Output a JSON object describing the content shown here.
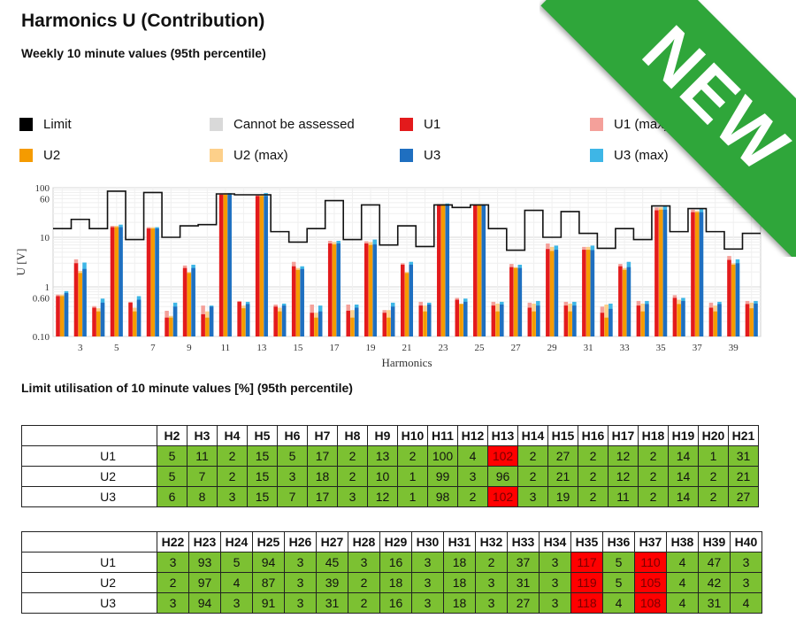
{
  "header": {
    "title": "Harmonics U (Contribution)",
    "subtitle": "Weekly 10 minute values (95th percentile)"
  },
  "ribbon": {
    "label": "NEW",
    "color": "#2fa63a"
  },
  "legend": [
    {
      "label": "Limit",
      "color": "#000000"
    },
    {
      "label": "Cannot be assessed",
      "color": "#d9d9d9"
    },
    {
      "label": "U1",
      "color": "#e31a1c"
    },
    {
      "label": "U1 (max)",
      "color": "#f4a09a"
    },
    {
      "label": "U2",
      "color": "#f59b00"
    },
    {
      "label": "U2 (max)",
      "color": "#fdd08a"
    },
    {
      "label": "U3",
      "color": "#1f6fc0"
    },
    {
      "label": "U3 (max)",
      "color": "#3eb6e6"
    }
  ],
  "chart_data": {
    "type": "bar",
    "yscale": "log",
    "ylim": [
      0.1,
      100
    ],
    "yticks": [
      0.1,
      0.6,
      1,
      10,
      60,
      100
    ],
    "ytick_labels": [
      "0.10",
      "0.60",
      "1",
      "10",
      "60",
      "100"
    ],
    "xlabel": "Harmonics",
    "ylabel": "U [V]",
    "x_tick_labels": [
      "3",
      "5",
      "7",
      "9",
      "11",
      "13",
      "15",
      "17",
      "19",
      "21",
      "23",
      "25",
      "27",
      "29",
      "31",
      "33",
      "35",
      "37",
      "39"
    ],
    "categories": [
      2,
      3,
      4,
      5,
      6,
      7,
      8,
      9,
      10,
      11,
      12,
      13,
      14,
      15,
      16,
      17,
      18,
      19,
      20,
      21,
      22,
      23,
      24,
      25,
      26,
      27,
      28,
      29,
      30,
      31,
      32,
      33,
      34,
      35,
      36,
      37,
      38,
      39,
      40
    ],
    "limit": [
      15,
      23,
      15,
      85,
      9,
      80,
      10,
      17,
      18,
      75,
      72,
      72,
      13,
      8,
      15,
      55,
      9,
      45,
      7,
      17,
      6.5,
      45,
      40,
      45,
      15,
      5.5,
      35,
      10,
      33,
      12,
      6,
      15,
      9,
      43,
      13,
      38,
      13,
      5.8,
      12
    ],
    "series": [
      {
        "name": "U1",
        "color": "#e31a1c",
        "values": [
          0.65,
          3.0,
          0.38,
          16,
          0.48,
          15,
          0.24,
          2.4,
          0.28,
          72,
          0.5,
          68,
          0.4,
          2.6,
          0.3,
          7.5,
          0.33,
          7.5,
          0.3,
          2.8,
          0.42,
          45,
          0.55,
          44,
          0.42,
          2.5,
          0.38,
          5.8,
          0.42,
          5.6,
          0.3,
          2.6,
          0.42,
          35,
          0.6,
          32,
          0.38,
          3.5,
          0.45
        ]
      },
      {
        "name": "U1 (max)",
        "color": "#f4a09a",
        "values": [
          0.7,
          3.6,
          0.41,
          17,
          0.5,
          16,
          0.33,
          2.7,
          0.42,
          77,
          0.52,
          73,
          0.44,
          3.2,
          0.44,
          8.5,
          0.44,
          8.3,
          0.34,
          3.0,
          0.5,
          47,
          0.6,
          46,
          0.5,
          2.9,
          0.48,
          7.5,
          0.5,
          6.4,
          0.4,
          2.9,
          0.52,
          40,
          0.68,
          36,
          0.48,
          4.2,
          0.52
        ]
      },
      {
        "name": "U2",
        "color": "#f59b00",
        "values": [
          0.65,
          1.9,
          0.32,
          16,
          0.32,
          15,
          0.24,
          1.9,
          0.24,
          72,
          0.37,
          68,
          0.32,
          2.2,
          0.24,
          7.2,
          0.24,
          7.0,
          0.24,
          1.9,
          0.32,
          45,
          0.45,
          44,
          0.32,
          2.4,
          0.32,
          5.3,
          0.32,
          5.6,
          0.24,
          2.2,
          0.32,
          36,
          0.45,
          32,
          0.32,
          2.8,
          0.37
        ]
      },
      {
        "name": "U2 (max)",
        "color": "#fdd08a",
        "values": [
          0.7,
          2.1,
          0.37,
          17,
          0.38,
          16,
          0.26,
          2.0,
          0.32,
          78,
          0.42,
          72,
          0.38,
          2.4,
          0.3,
          8.0,
          0.34,
          8.0,
          0.34,
          2.0,
          0.42,
          47,
          0.46,
          46,
          0.46,
          2.5,
          0.46,
          6.4,
          0.46,
          6.4,
          0.44,
          2.4,
          0.46,
          40,
          0.55,
          34,
          0.42,
          3.0,
          0.48
        ]
      },
      {
        "name": "U3",
        "color": "#1f6fc0",
        "values": [
          0.75,
          2.3,
          0.48,
          16,
          0.55,
          15,
          0.4,
          2.4,
          0.4,
          72,
          0.45,
          68,
          0.42,
          2.3,
          0.32,
          7.5,
          0.38,
          7.2,
          0.4,
          2.8,
          0.44,
          45,
          0.5,
          44,
          0.44,
          2.4,
          0.42,
          5.6,
          0.42,
          5.5,
          0.36,
          2.5,
          0.45,
          36,
          0.52,
          32,
          0.45,
          3.0,
          0.46
        ]
      },
      {
        "name": "U3 (max)",
        "color": "#3eb6e6",
        "values": [
          0.82,
          3.1,
          0.58,
          18,
          0.65,
          16,
          0.48,
          2.8,
          0.42,
          78,
          0.5,
          78,
          0.46,
          2.6,
          0.42,
          8.5,
          0.44,
          9.0,
          0.48,
          3.2,
          0.48,
          48,
          0.58,
          46,
          0.5,
          2.8,
          0.52,
          6.8,
          0.5,
          6.8,
          0.46,
          3.2,
          0.52,
          42,
          0.6,
          38,
          0.5,
          3.6,
          0.52
        ]
      }
    ],
    "grid": true,
    "legend_position": "top"
  },
  "section2_title": "Limit utilisation of 10 minute values [%] (95th percentile)",
  "table1": {
    "headers": [
      "H2",
      "H3",
      "H4",
      "H5",
      "H6",
      "H7",
      "H8",
      "H9",
      "H10",
      "H11",
      "H12",
      "H13",
      "H14",
      "H15",
      "H16",
      "H17",
      "H18",
      "H19",
      "H20",
      "H21"
    ],
    "rows": [
      {
        "label": "U1",
        "values": [
          "5",
          "11",
          "2",
          "15",
          "5",
          "17",
          "2",
          "13",
          "2",
          "100",
          "4",
          "102",
          "2",
          "27",
          "2",
          "12",
          "2",
          "14",
          "1",
          "31"
        ]
      },
      {
        "label": "U2",
        "values": [
          "5",
          "7",
          "2",
          "15",
          "3",
          "18",
          "2",
          "10",
          "1",
          "99",
          "3",
          "96",
          "2",
          "21",
          "2",
          "12",
          "2",
          "14",
          "2",
          "21"
        ]
      },
      {
        "label": "U3",
        "values": [
          "6",
          "8",
          "3",
          "15",
          "7",
          "17",
          "3",
          "12",
          "1",
          "98",
          "2",
          "102",
          "3",
          "19",
          "2",
          "11",
          "2",
          "14",
          "2",
          "27"
        ]
      }
    ]
  },
  "table2": {
    "headers": [
      "H22",
      "H23",
      "H24",
      "H25",
      "H26",
      "H27",
      "H28",
      "H29",
      "H30",
      "H31",
      "H32",
      "H33",
      "H34",
      "H35",
      "H36",
      "H37",
      "H38",
      "H39",
      "H40"
    ],
    "rows": [
      {
        "label": "U1",
        "values": [
          "3",
          "93",
          "5",
          "94",
          "3",
          "45",
          "3",
          "16",
          "3",
          "18",
          "2",
          "37",
          "3",
          "117",
          "5",
          "110",
          "4",
          "47",
          "3"
        ]
      },
      {
        "label": "U2",
        "values": [
          "2",
          "97",
          "4",
          "87",
          "3",
          "39",
          "2",
          "18",
          "3",
          "18",
          "3",
          "31",
          "3",
          "119",
          "5",
          "105",
          "4",
          "42",
          "3"
        ]
      },
      {
        "label": "U3",
        "values": [
          "3",
          "94",
          "3",
          "91",
          "3",
          "31",
          "2",
          "16",
          "3",
          "18",
          "3",
          "27",
          "3",
          "118",
          "4",
          "108",
          "4",
          "31",
          "4"
        ]
      }
    ]
  },
  "threshold_percent": 100
}
